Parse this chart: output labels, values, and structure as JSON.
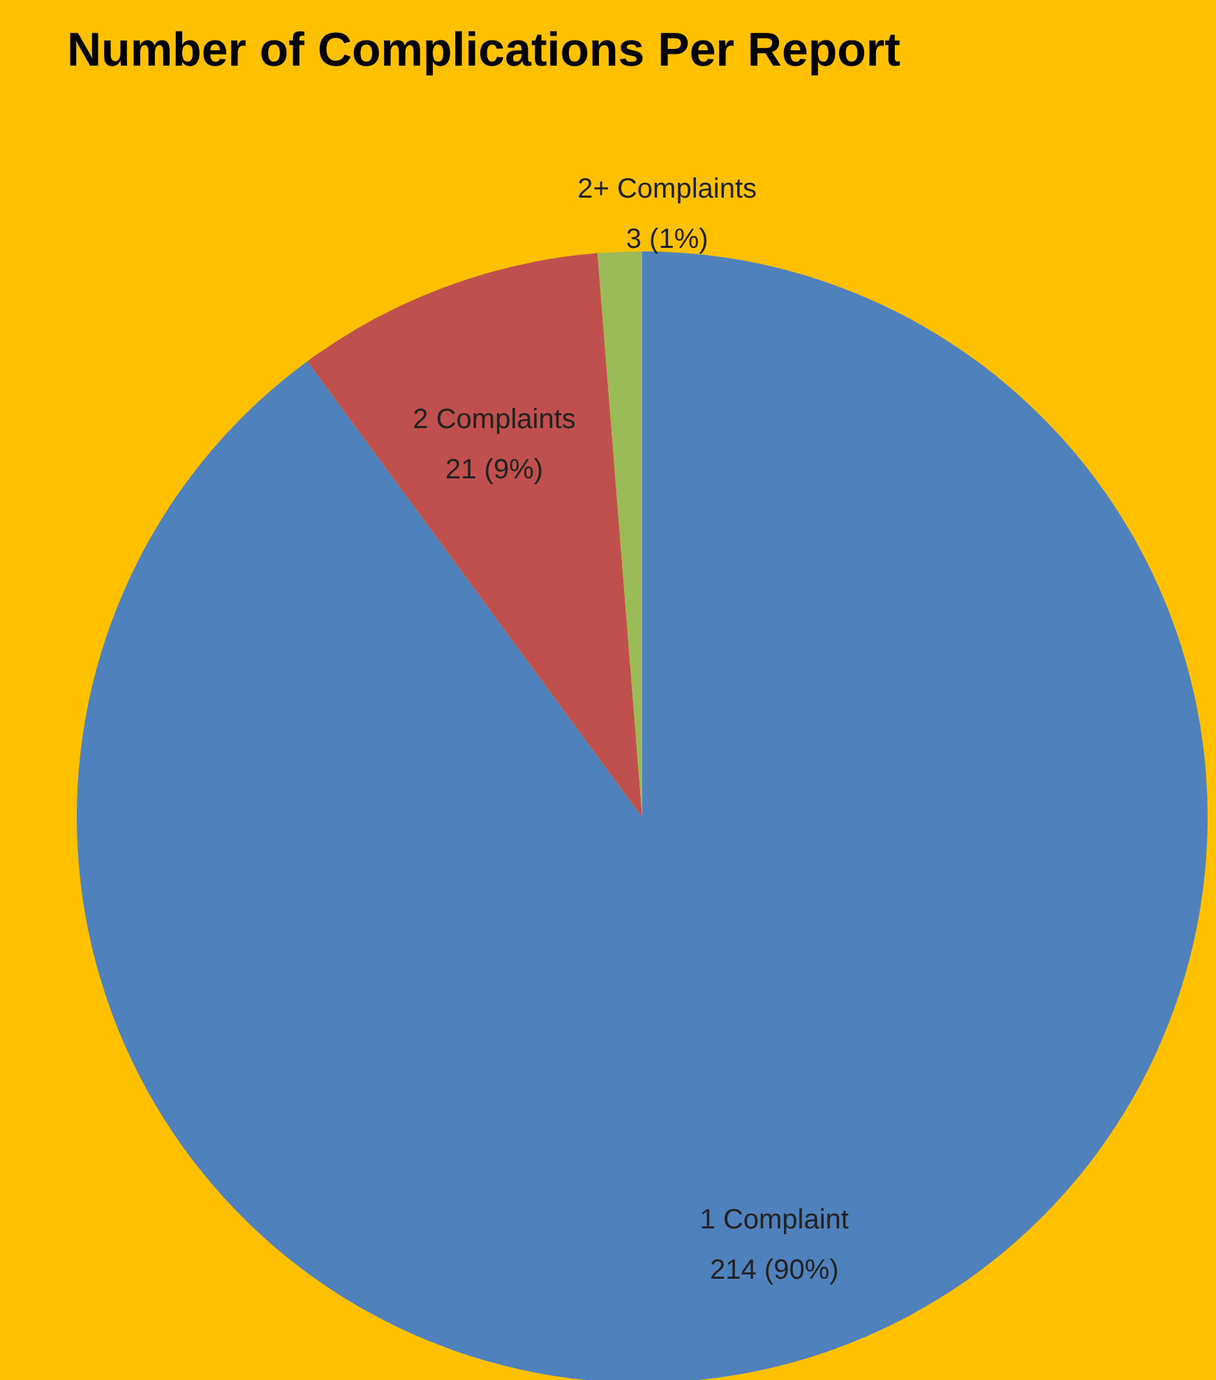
{
  "chart_data": {
    "type": "pie",
    "title": "Number of Complications Per Report",
    "categories": [
      "1 Complaint",
      "2 Complaints",
      "2+ Complaints"
    ],
    "values": [
      214,
      21,
      3
    ],
    "colors": [
      "#4f81bd",
      "#c0504d",
      "#9bbb59"
    ],
    "value_labels": [
      "214 (90%)",
      "21 (9%)",
      "3 (1%)"
    ],
    "legend": false
  }
}
